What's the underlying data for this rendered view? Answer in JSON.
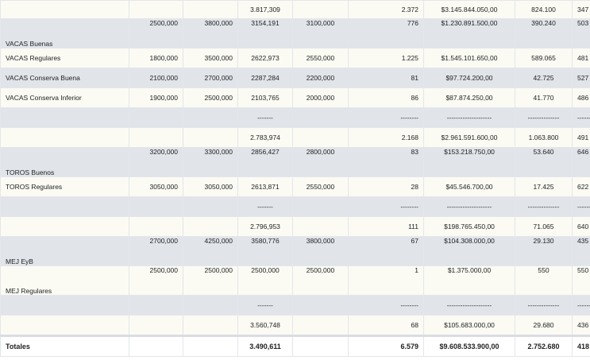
{
  "rows": [
    {
      "kind": "odd",
      "h": "r-norm",
      "label": "",
      "p1": "",
      "p2": "",
      "prom": "3.817,309",
      "val": "",
      "cab": "2.372",
      "imp": "$3.145.844.050,00",
      "kg": "824.100",
      "last": "347"
    },
    {
      "kind": "even",
      "h": "r-tall",
      "label": "VACAS Buenas",
      "p1": "2500,000",
      "p2": "3800,000",
      "prom": "3154,191",
      "val": "3100,000",
      "cab": "776",
      "imp": "$1.230.891.500,00",
      "kg": "390.240",
      "last": "503"
    },
    {
      "kind": "odd",
      "h": "r-mid",
      "label": "VACAS Regulares",
      "p1": "1800,000",
      "p2": "3500,000",
      "prom": "2622,973",
      "val": "2550,000",
      "cab": "1.225",
      "imp": "$1.545.101.650,00",
      "kg": "589.065",
      "last": "481"
    },
    {
      "kind": "even",
      "h": "r-mid",
      "label": "VACAS Conserva Buena",
      "p1": "2100,000",
      "p2": "2700,000",
      "prom": "2287,284",
      "val": "2200,000",
      "cab": "81",
      "imp": "$97.724.200,00",
      "kg": "42.725",
      "last": "527"
    },
    {
      "kind": "odd",
      "h": "r-mid",
      "label": "VACAS Conserva Inferior",
      "p1": "1900,000",
      "p2": "2500,000",
      "prom": "2103,765",
      "val": "2000,000",
      "cab": "86",
      "imp": "$87.874.250,00",
      "kg": "41.770",
      "last": "486"
    },
    {
      "kind": "even",
      "h": "r-mid",
      "label": "",
      "p1": "",
      "p2": "",
      "prom": "-------",
      "val": "",
      "cab": "--------",
      "imp": "--------------------",
      "kg": "--------------",
      "last": "------"
    },
    {
      "kind": "odd",
      "h": "r-mid",
      "label": "",
      "p1": "",
      "p2": "",
      "prom": "2.783,974",
      "val": "",
      "cab": "2.168",
      "imp": "$2.961.591.600,00",
      "kg": "1.063.800",
      "last": "491"
    },
    {
      "kind": "even",
      "h": "r-tall",
      "label": "TOROS Buenos",
      "p1": "3200,000",
      "p2": "3300,000",
      "prom": "2856,427",
      "val": "2800,000",
      "cab": "83",
      "imp": "$153.218.750,00",
      "kg": "53.640",
      "last": "646"
    },
    {
      "kind": "odd",
      "h": "r-mid",
      "label": "TOROS Regulares",
      "p1": "3050,000",
      "p2": "3050,000",
      "prom": "2613,871",
      "val": "2550,000",
      "cab": "28",
      "imp": "$45.546.700,00",
      "kg": "17.425",
      "last": "622"
    },
    {
      "kind": "even",
      "h": "r-mid",
      "label": "",
      "p1": "",
      "p2": "",
      "prom": "-------",
      "val": "",
      "cab": "--------",
      "imp": "--------------------",
      "kg": "--------------",
      "last": "------"
    },
    {
      "kind": "odd",
      "h": "r-mid",
      "label": "",
      "p1": "",
      "p2": "",
      "prom": "2.796,953",
      "val": "",
      "cab": "111",
      "imp": "$198.765.450,00",
      "kg": "71.065",
      "last": "640"
    },
    {
      "kind": "even",
      "h": "r-tall",
      "label": "MEJ EyB",
      "p1": "2700,000",
      "p2": "4250,000",
      "prom": "3580,776",
      "val": "3800,000",
      "cab": "67",
      "imp": "$104.308.000,00",
      "kg": "29.130",
      "last": "435"
    },
    {
      "kind": "odd",
      "h": "r-tall",
      "label": "MEJ Regulares",
      "p1": "2500,000",
      "p2": "2500,000",
      "prom": "2500,000",
      "val": "2500,000",
      "cab": "1",
      "imp": "$1.375.000,00",
      "kg": "550",
      "last": "550"
    },
    {
      "kind": "even",
      "h": "r-mid",
      "label": "",
      "p1": "",
      "p2": "",
      "prom": "-------",
      "val": "",
      "cab": "--------",
      "imp": "--------------------",
      "kg": "--------------",
      "last": "------"
    },
    {
      "kind": "odd",
      "h": "r-mid",
      "label": "",
      "p1": "",
      "p2": "",
      "prom": "3.560,748",
      "val": "",
      "cab": "68",
      "imp": "$105.683.000,00",
      "kg": "29.680",
      "last": "436"
    }
  ],
  "totals": {
    "label": "Totales",
    "prom": "3.490,611",
    "cab": "6.579",
    "imp": "$9.608.533.900,00",
    "kg": "2.752.680",
    "last": "418"
  }
}
